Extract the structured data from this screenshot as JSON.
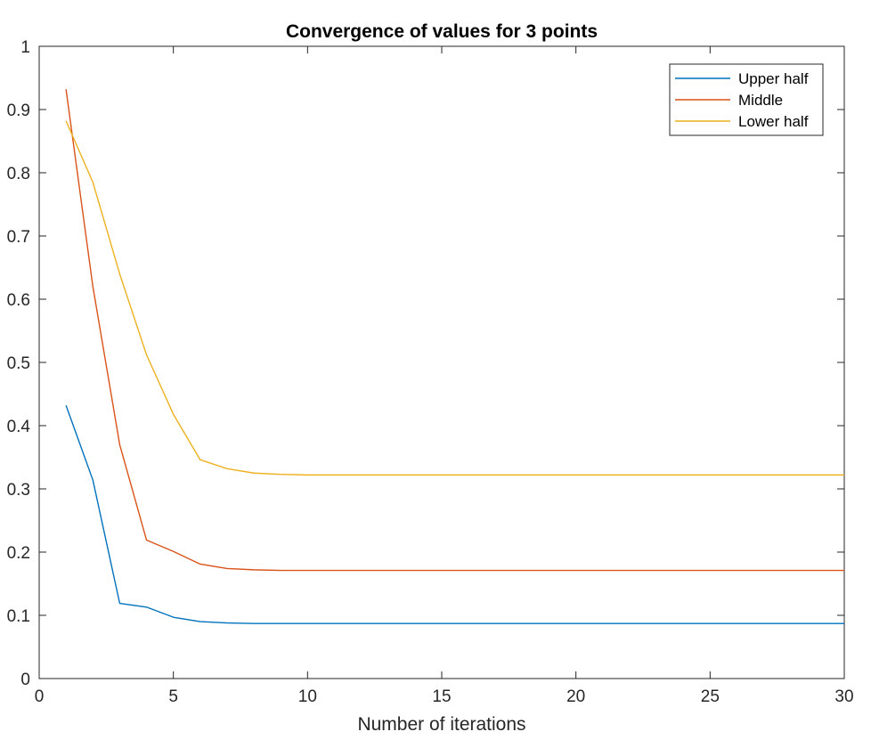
{
  "chart_data": {
    "type": "line",
    "title": "Convergence of values for 3 points",
    "xlabel": "Number of iterations",
    "ylabel": "",
    "xlim": [
      0,
      30
    ],
    "ylim": [
      0,
      1
    ],
    "xticks": [
      0,
      5,
      10,
      15,
      20,
      25,
      30
    ],
    "yticks": [
      0,
      0.1,
      0.2,
      0.3,
      0.4,
      0.5,
      0.6,
      0.7,
      0.8,
      0.9,
      1
    ],
    "xtick_labels": [
      "0",
      "5",
      "10",
      "15",
      "20",
      "25",
      "30"
    ],
    "ytick_labels": [
      "0",
      "0.1",
      "0.2",
      "0.3",
      "0.4",
      "0.5",
      "0.6",
      "0.7",
      "0.8",
      "0.9",
      "1"
    ],
    "grid": false,
    "legend_position": "top-right",
    "x": [
      1,
      2,
      3,
      4,
      5,
      6,
      7,
      8,
      9,
      10,
      11,
      12,
      13,
      14,
      15,
      16,
      17,
      18,
      19,
      20,
      21,
      22,
      23,
      24,
      25,
      26,
      27,
      28,
      29,
      30
    ],
    "series": [
      {
        "name": "Upper half",
        "color": "#0072BD",
        "values": [
          0.432,
          0.314,
          0.119,
          0.113,
          0.097,
          0.09,
          0.088,
          0.087,
          0.087,
          0.087,
          0.087,
          0.087,
          0.087,
          0.087,
          0.087,
          0.087,
          0.087,
          0.087,
          0.087,
          0.087,
          0.087,
          0.087,
          0.087,
          0.087,
          0.087,
          0.087,
          0.087,
          0.087,
          0.087,
          0.087
        ]
      },
      {
        "name": "Middle",
        "color": "#D95319",
        "values": [
          0.932,
          0.62,
          0.37,
          0.219,
          0.201,
          0.181,
          0.174,
          0.172,
          0.171,
          0.171,
          0.171,
          0.171,
          0.171,
          0.171,
          0.171,
          0.171,
          0.171,
          0.171,
          0.171,
          0.171,
          0.171,
          0.171,
          0.171,
          0.171,
          0.171,
          0.171,
          0.171,
          0.171,
          0.171,
          0.171
        ]
      },
      {
        "name": "Lower half",
        "color": "#EDB120",
        "values": [
          0.882,
          0.785,
          0.64,
          0.512,
          0.418,
          0.346,
          0.332,
          0.325,
          0.323,
          0.322,
          0.322,
          0.322,
          0.322,
          0.322,
          0.322,
          0.322,
          0.322,
          0.322,
          0.322,
          0.322,
          0.322,
          0.322,
          0.322,
          0.322,
          0.322,
          0.322,
          0.322,
          0.322,
          0.322,
          0.322
        ]
      }
    ]
  }
}
